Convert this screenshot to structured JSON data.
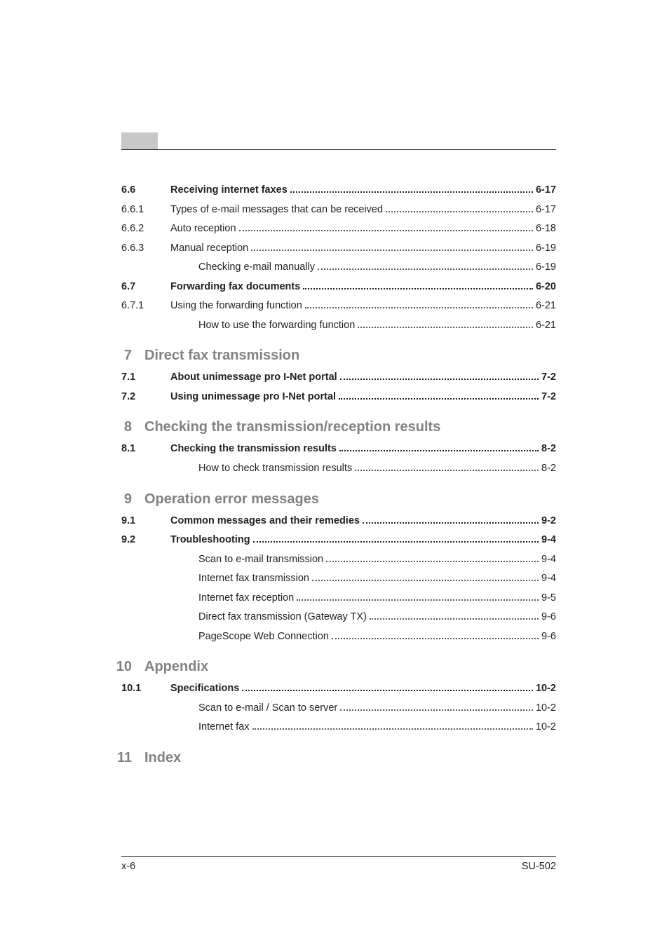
{
  "entries": [
    {
      "kind": "section",
      "num": "6.6",
      "title": "Receiving internet faxes",
      "page": "6-17",
      "bold": true
    },
    {
      "kind": "sub",
      "num": "6.6.1",
      "title": "Types of e-mail messages that can be received",
      "page": "6-17",
      "bold": false
    },
    {
      "kind": "sub",
      "num": "6.6.2",
      "title": "Auto reception",
      "page": "6-18",
      "bold": false
    },
    {
      "kind": "sub",
      "num": "6.6.3",
      "title": "Manual reception",
      "page": "6-19",
      "bold": false
    },
    {
      "kind": "subsub",
      "num": "",
      "title": "Checking e-mail manually",
      "page": "6-19",
      "bold": false
    },
    {
      "kind": "section",
      "num": "6.7",
      "title": "Forwarding fax documents",
      "page": "6-20",
      "bold": true
    },
    {
      "kind": "sub",
      "num": "6.7.1",
      "title": "Using the forwarding function",
      "page": "6-21",
      "bold": false
    },
    {
      "kind": "subsub",
      "num": "",
      "title": "How to use the forwarding function",
      "page": "6-21",
      "bold": false
    },
    {
      "kind": "chapter",
      "num": "7",
      "title": "Direct fax transmission"
    },
    {
      "kind": "section",
      "num": "7.1",
      "title": "About unimessage pro I-Net portal",
      "page": "7-2",
      "bold": true
    },
    {
      "kind": "section",
      "num": "7.2",
      "title": "Using unimessage pro I-Net portal",
      "page": "7-2",
      "bold": true
    },
    {
      "kind": "chapter",
      "num": "8",
      "title": "Checking the transmission/reception results"
    },
    {
      "kind": "section",
      "num": "8.1",
      "title": "Checking the transmission results",
      "page": "8-2",
      "bold": true
    },
    {
      "kind": "subsub",
      "num": "",
      "title": "How to check transmission results",
      "page": "8-2",
      "bold": false
    },
    {
      "kind": "chapter",
      "num": "9",
      "title": "Operation error messages"
    },
    {
      "kind": "section",
      "num": "9.1",
      "title": "Common messages and their remedies",
      "page": "9-2",
      "bold": true
    },
    {
      "kind": "section",
      "num": "9.2",
      "title": "Troubleshooting",
      "page": "9-4",
      "bold": true
    },
    {
      "kind": "subsub",
      "num": "",
      "title": "Scan to e-mail transmission",
      "page": "9-4",
      "bold": false
    },
    {
      "kind": "subsub",
      "num": "",
      "title": "Internet fax transmission",
      "page": "9-4",
      "bold": false
    },
    {
      "kind": "subsub",
      "num": "",
      "title": "Internet fax reception",
      "page": "9-5",
      "bold": false
    },
    {
      "kind": "subsub",
      "num": "",
      "title": "Direct fax transmission (Gateway TX)",
      "page": "9-6",
      "bold": false
    },
    {
      "kind": "subsub",
      "num": "",
      "title": "PageScope Web Connection",
      "page": "9-6",
      "bold": false
    },
    {
      "kind": "chapter",
      "num": "10",
      "title": "Appendix"
    },
    {
      "kind": "section",
      "num": "10.1",
      "title": "Specifications",
      "page": "10-2",
      "bold": true
    },
    {
      "kind": "subsub",
      "num": "",
      "title": "Scan to e-mail / Scan to server",
      "page": "10-2",
      "bold": false
    },
    {
      "kind": "subsub",
      "num": "",
      "title": "Internet fax",
      "page": "10-2",
      "bold": false
    },
    {
      "kind": "chapter",
      "num": "11",
      "title": "Index"
    }
  ],
  "footer": {
    "left": "x-6",
    "right": "SU-502"
  }
}
